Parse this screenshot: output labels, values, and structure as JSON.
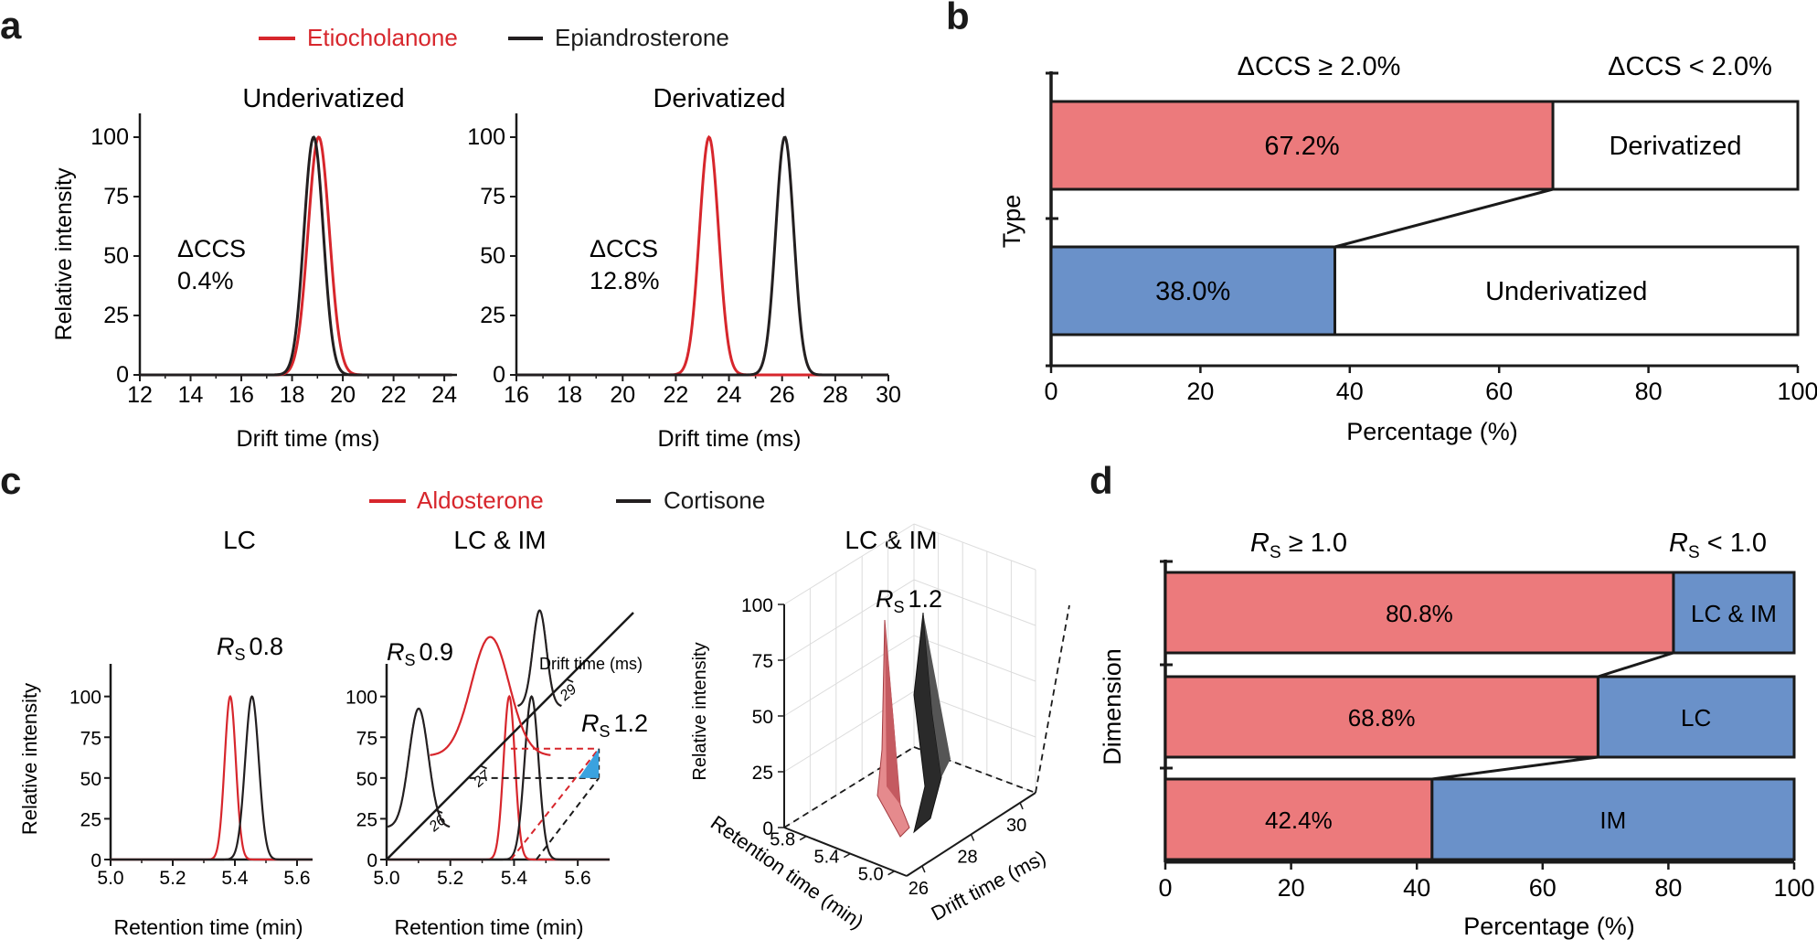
{
  "colors": {
    "red": "#d7262c",
    "black": "#231f20",
    "pink": "#ec7a7c",
    "blue": "#6a91c9",
    "cyan": "#3aa2df"
  },
  "panels": {
    "a": "a",
    "b": "b",
    "c": "c",
    "d": "d"
  },
  "legend_a": {
    "etio": "Etiocholanone",
    "epi": "Epiandrosterone"
  },
  "legend_c": {
    "aldo": "Aldosterone",
    "cort": "Cortisone"
  },
  "a": {
    "ylabel": "Relative intensity",
    "xlabel": "Drift time (ms)",
    "left": {
      "title": "Underivatized",
      "dccs": "ΔCCS",
      "dccs_val": "0.4%"
    },
    "right": {
      "title": "Derivatized",
      "dccs": "ΔCCS",
      "dccs_val": "12.8%"
    }
  },
  "b": {
    "ylabel": "Type",
    "xlabel": "Percentage (%)",
    "head_left": "ΔCCS ≥ 2.0%",
    "head_right": "ΔCCS < 2.0%"
  },
  "c": {
    "ylabel": "Relative intensity",
    "xlabel": "Retention time (min)",
    "t1": "LC",
    "t2": "LC & IM",
    "t3": "LC & IM",
    "rs": "R",
    "rs_sub": "S",
    "rs1": "0.8",
    "rs2": "0.9",
    "rs3": "1.2",
    "rs4": "1.2",
    "drift_label": "Drift time (ms)",
    "diag_ticks": [
      "26",
      "27",
      "29"
    ],
    "p3_z_label": "Relative intensity",
    "p3_ret_label": "Retention time (min)",
    "p3_drift_label": "Drift time (ms)",
    "p3_z_ticks": [
      "100",
      "75",
      "50",
      "25",
      "0"
    ],
    "p3_ret_ticks": [
      "5.8",
      "5.4",
      "5.0"
    ],
    "p3_drift_ticks": [
      "26",
      "28",
      "30"
    ]
  },
  "d": {
    "ylabel": "Dimension",
    "xlabel": "Percentage (%)",
    "head_left_tail": " ≥ 1.0",
    "head_right_tail": " < 1.0"
  },
  "chart_data": [
    {
      "id": "a-left",
      "type": "line",
      "title": "Underivatized",
      "xlabel": "Drift time (ms)",
      "ylabel": "Relative intensity",
      "xlim": [
        12,
        24.5
      ],
      "ylim": [
        0,
        110
      ],
      "xticks": [
        12,
        14,
        16,
        18,
        20,
        22,
        24
      ],
      "yticks": [
        0,
        25,
        50,
        75,
        100
      ],
      "series": [
        {
          "name": "Etiocholanone",
          "color": "red",
          "peak_x": 19.05,
          "peak_y": 100,
          "sigma": 0.42
        },
        {
          "name": "Epiandrosterone",
          "color": "black",
          "peak_x": 18.85,
          "peak_y": 100,
          "sigma": 0.38
        }
      ]
    },
    {
      "id": "a-right",
      "type": "line",
      "title": "Derivatized",
      "xlabel": "Drift time (ms)",
      "ylabel": "Relative intensity",
      "xlim": [
        16,
        30
      ],
      "ylim": [
        0,
        110
      ],
      "xticks": [
        16,
        18,
        20,
        22,
        24,
        26,
        28,
        30
      ],
      "yticks": [
        0,
        25,
        50,
        75,
        100
      ],
      "series": [
        {
          "name": "Etiocholanone",
          "color": "red",
          "peak_x": 23.25,
          "peak_y": 100,
          "sigma": 0.36
        },
        {
          "name": "Epiandrosterone",
          "color": "black",
          "peak_x": 26.1,
          "peak_y": 100,
          "sigma": 0.34
        }
      ]
    },
    {
      "id": "b",
      "type": "bar",
      "orientation": "horizontal",
      "stacked": true,
      "xlim": [
        0,
        100
      ],
      "xticks": [
        0,
        20,
        40,
        60,
        80,
        100
      ],
      "categories": [
        "Derivatized",
        "Underivatized"
      ],
      "series": [
        {
          "name": "ΔCCS ≥ 2.0%",
          "values": [
            67.2,
            38.0
          ],
          "labels": [
            "67.2%",
            "38.0%"
          ],
          "colors": [
            "pink",
            "blue"
          ]
        },
        {
          "name": "ΔCCS < 2.0%",
          "values": [
            32.8,
            62.0
          ],
          "colors": [
            "white",
            "white"
          ]
        }
      ]
    },
    {
      "id": "c-lc",
      "type": "line",
      "title": "LC",
      "xlabel": "Retention time (min)",
      "ylabel": "Relative intensity",
      "xlim": [
        5.0,
        5.65
      ],
      "ylim": [
        0,
        120
      ],
      "xticks": [
        5.0,
        5.2,
        5.4,
        5.6
      ],
      "yticks": [
        0,
        25,
        50,
        75,
        100
      ],
      "series": [
        {
          "name": "Aldosterone",
          "color": "red",
          "peak_x": 5.385,
          "peak_y": 100,
          "sigma": 0.018
        },
        {
          "name": "Cortisone",
          "color": "black",
          "peak_x": 5.455,
          "peak_y": 100,
          "sigma": 0.022
        }
      ]
    },
    {
      "id": "c-lcim",
      "type": "line",
      "title": "LC & IM",
      "xlabel": "Retention time (min)",
      "xlim": [
        5.0,
        5.7
      ],
      "ylim": [
        0,
        120
      ],
      "xticks": [
        5.0,
        5.2,
        5.4,
        5.6
      ],
      "yticks": [
        0,
        25,
        50,
        75,
        100
      ],
      "series": [
        {
          "name": "Aldosterone",
          "color": "red",
          "peak_x": 5.385,
          "peak_y": 100,
          "sigma": 0.018
        },
        {
          "name": "Cortisone",
          "color": "black",
          "peak_x": 5.455,
          "peak_y": 100,
          "sigma": 0.022
        }
      ]
    },
    {
      "id": "d",
      "type": "bar",
      "orientation": "horizontal",
      "stacked": true,
      "xlim": [
        0,
        100
      ],
      "xticks": [
        0,
        20,
        40,
        60,
        80,
        100
      ],
      "categories": [
        "LC & IM",
        "LC",
        "IM"
      ],
      "series": [
        {
          "name": "RS ≥ 1.0",
          "values": [
            80.8,
            68.8,
            42.4
          ],
          "labels": [
            "80.8%",
            "68.8%",
            "42.4%"
          ]
        },
        {
          "name": "RS < 1.0",
          "values": [
            19.2,
            31.2,
            57.6
          ]
        }
      ]
    }
  ]
}
